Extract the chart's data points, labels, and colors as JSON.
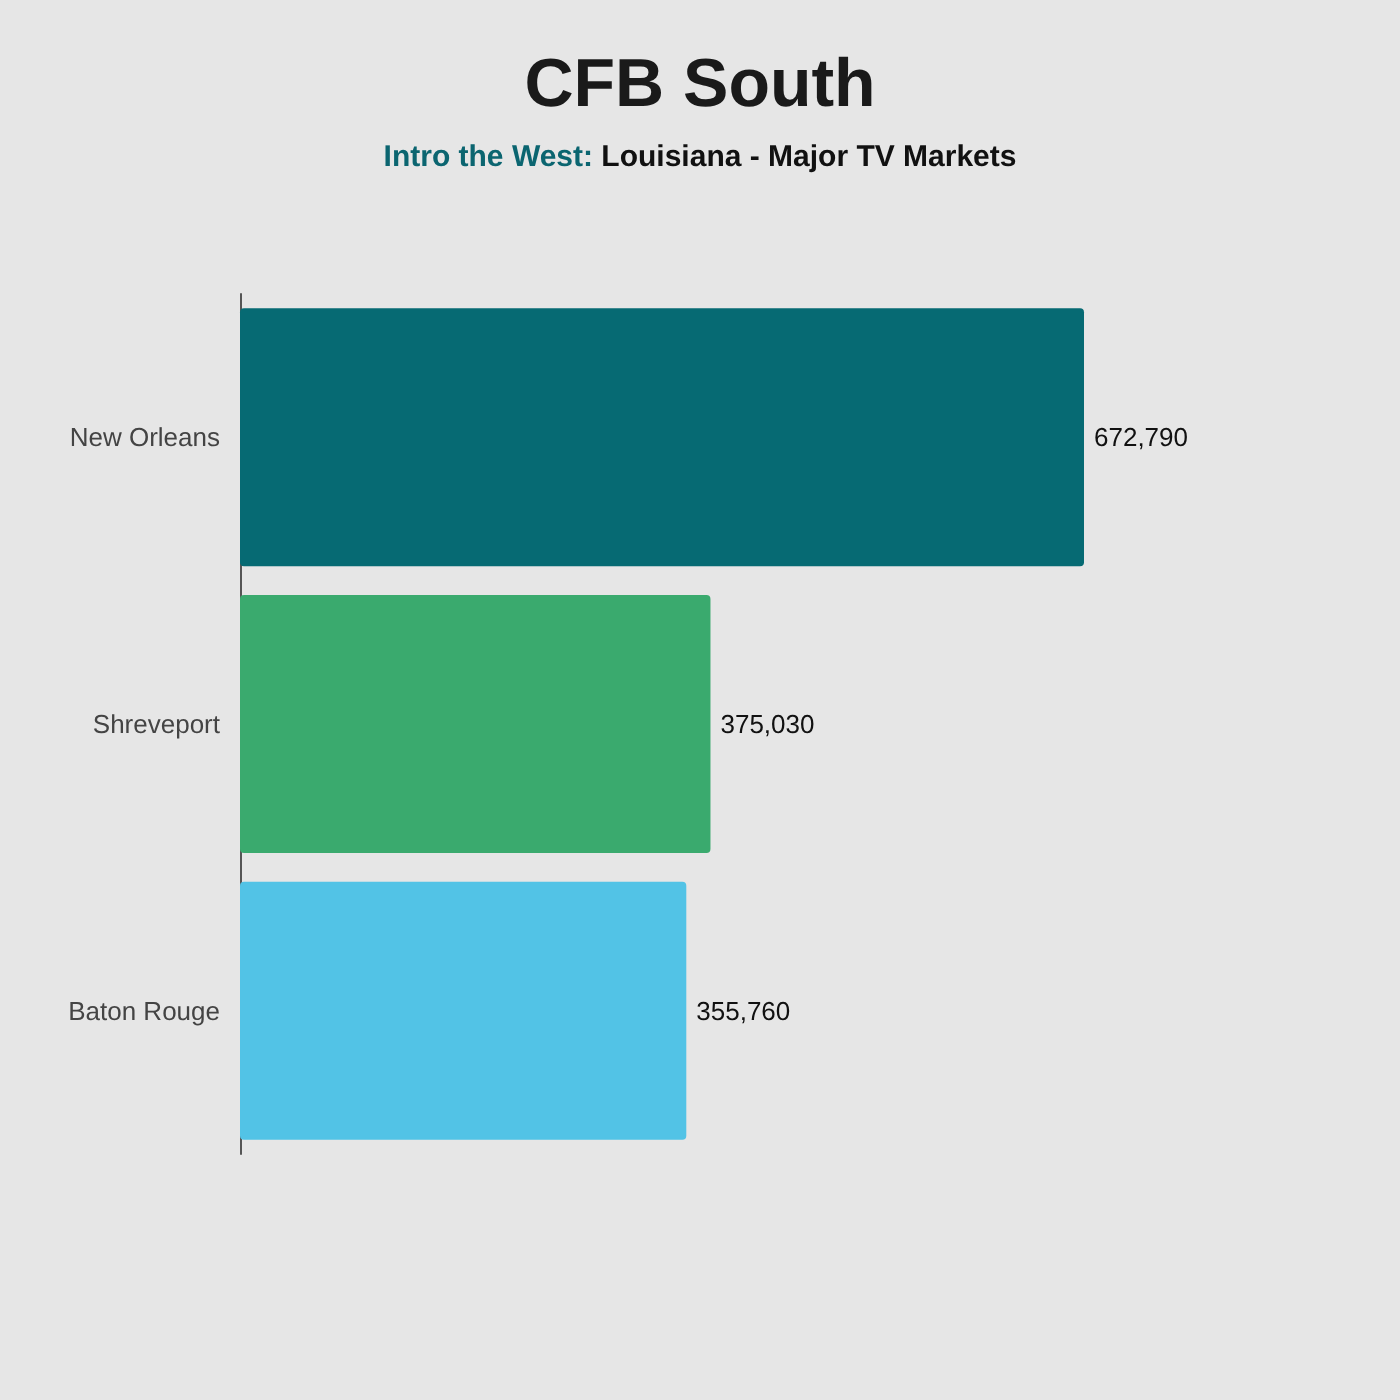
{
  "chart_data": {
    "type": "bar",
    "orientation": "horizontal",
    "title": "CFB South",
    "subtitle": "Intro the West: Louisiana - Major TV Markets",
    "categories": [
      "New Orleans",
      "Shreveport",
      "Baton Rouge"
    ],
    "values": [
      672790,
      375030,
      355760
    ],
    "colors": [
      "#066a73",
      "#3aaa6e",
      "#52c3e6"
    ],
    "value_labels": [
      "672,790",
      "375,030",
      "355,760"
    ]
  }
}
